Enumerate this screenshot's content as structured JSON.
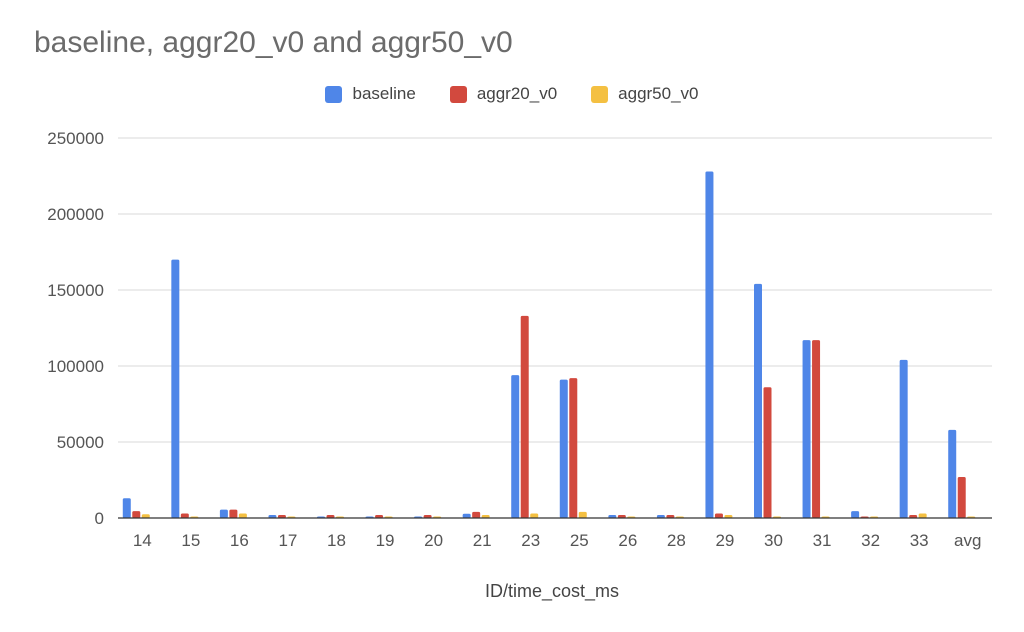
{
  "chart_data": {
    "type": "bar",
    "title": "baseline, aggr20_v0 and aggr50_v0",
    "xlabel": "ID/time_cost_ms",
    "ylabel": "",
    "ylim": [
      0,
      250000
    ],
    "yticks": [
      "0",
      "50000",
      "100000",
      "150000",
      "200000",
      "250000"
    ],
    "ytick_values": [
      0,
      50000,
      100000,
      150000,
      200000,
      250000
    ],
    "grid": true,
    "legend_position": "top",
    "categories": [
      "14",
      "15",
      "16",
      "17",
      "18",
      "19",
      "20",
      "21",
      "23",
      "25",
      "26",
      "28",
      "29",
      "30",
      "31",
      "32",
      "33",
      "avg"
    ],
    "series": [
      {
        "name": "baseline",
        "color": "#4f86e8",
        "values": [
          13000,
          170000,
          5500,
          2000,
          1000,
          1000,
          1000,
          2800,
          94000,
          91000,
          2000,
          2000,
          228000,
          154000,
          117000,
          4500,
          104000,
          58000
        ]
      },
      {
        "name": "aggr20_v0",
        "color": "#d2493e",
        "values": [
          4500,
          3000,
          5500,
          2000,
          2000,
          2000,
          2000,
          4000,
          133000,
          92000,
          2000,
          2000,
          3000,
          86000,
          117000,
          1000,
          2000,
          27000
        ]
      },
      {
        "name": "aggr50_v0",
        "color": "#f4c042",
        "values": [
          2500,
          1000,
          3000,
          800,
          500,
          500,
          500,
          2000,
          3000,
          4000,
          500,
          500,
          2000,
          800,
          500,
          500,
          3000,
          1000
        ]
      }
    ]
  }
}
